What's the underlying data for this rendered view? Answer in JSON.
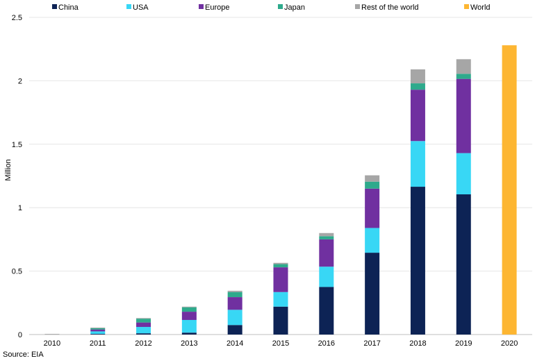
{
  "chart_data": {
    "type": "bar",
    "stacked": true,
    "title": "",
    "xlabel": "",
    "ylabel": "Million",
    "ylim": [
      0,
      2.5
    ],
    "yticks": [
      0,
      0.5,
      1,
      1.5,
      2,
      2.5
    ],
    "ytick_labels": [
      "0",
      "0.5",
      "1",
      "1.5",
      "2",
      "2.5"
    ],
    "grid": "horizontal",
    "legend_position": "top",
    "categories": [
      "2010",
      "2011",
      "2012",
      "2013",
      "2014",
      "2015",
      "2016",
      "2017",
      "2018",
      "2019",
      "2020"
    ],
    "series": [
      {
        "name": "China",
        "color": "#0d2355",
        "values": [
          0.0,
          0.005,
          0.01,
          0.015,
          0.075,
          0.22,
          0.375,
          0.645,
          1.165,
          1.105,
          null
        ]
      },
      {
        "name": "USA",
        "color": "#38d7f5",
        "values": [
          0.0,
          0.02,
          0.05,
          0.1,
          0.12,
          0.115,
          0.16,
          0.195,
          0.36,
          0.325,
          null
        ]
      },
      {
        "name": "Europe",
        "color": "#7030a0",
        "values": [
          0.0,
          0.015,
          0.035,
          0.065,
          0.1,
          0.195,
          0.215,
          0.31,
          0.405,
          0.585,
          null
        ]
      },
      {
        "name": "Japan",
        "color": "#2eaa8c",
        "values": [
          0.0,
          0.01,
          0.03,
          0.035,
          0.04,
          0.025,
          0.025,
          0.055,
          0.05,
          0.04,
          null
        ]
      },
      {
        "name": "Rest of the world",
        "color": "#a6a6a6",
        "values": [
          0.005,
          0.005,
          0.005,
          0.005,
          0.01,
          0.01,
          0.025,
          0.05,
          0.11,
          0.115,
          null
        ]
      },
      {
        "name": "World",
        "color": "#fdb632",
        "values": [
          null,
          null,
          null,
          null,
          null,
          null,
          null,
          null,
          null,
          null,
          2.28
        ]
      }
    ],
    "source_note": "Source: EIA"
  }
}
